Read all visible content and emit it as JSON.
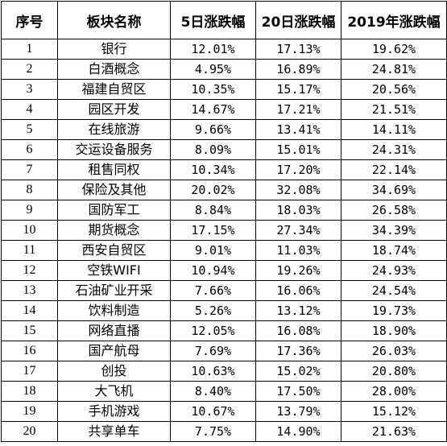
{
  "table": {
    "headers": [
      "序号",
      "板块名称",
      "5日涨跌幅",
      "20日涨跌幅",
      "2019年涨跌幅"
    ],
    "rows": [
      {
        "no": "1",
        "name": "银行",
        "d5": "12.01%",
        "d20": "17.13%",
        "y2019": "19.62%"
      },
      {
        "no": "2",
        "name": "白酒概念",
        "d5": "4.95%",
        "d20": "16.89%",
        "y2019": "24.81%"
      },
      {
        "no": "3",
        "name": "福建自贸区",
        "d5": "10.35%",
        "d20": "15.17%",
        "y2019": "20.56%"
      },
      {
        "no": "4",
        "name": "园区开发",
        "d5": "14.67%",
        "d20": "17.21%",
        "y2019": "21.51%"
      },
      {
        "no": "5",
        "name": "在线旅游",
        "d5": "9.66%",
        "d20": "13.41%",
        "y2019": "14.11%"
      },
      {
        "no": "6",
        "name": "交运设备服务",
        "d5": "8.09%",
        "d20": "15.01%",
        "y2019": "24.31%"
      },
      {
        "no": "7",
        "name": "租售同权",
        "d5": "10.34%",
        "d20": "17.20%",
        "y2019": "22.14%"
      },
      {
        "no": "8",
        "name": "保险及其他",
        "d5": "20.02%",
        "d20": "32.08%",
        "y2019": "34.69%"
      },
      {
        "no": "9",
        "name": "国防军工",
        "d5": "8.84%",
        "d20": "18.03%",
        "y2019": "26.58%"
      },
      {
        "no": "10",
        "name": "期货概念",
        "d5": "17.15%",
        "d20": "27.34%",
        "y2019": "34.39%"
      },
      {
        "no": "11",
        "name": "西安自贸区",
        "d5": "9.01%",
        "d20": "11.03%",
        "y2019": "18.74%"
      },
      {
        "no": "12",
        "name": "空铁WIFI",
        "d5": "10.94%",
        "d20": "19.26%",
        "y2019": "24.93%"
      },
      {
        "no": "13",
        "name": "石油矿业开采",
        "d5": "7.66%",
        "d20": "16.06%",
        "y2019": "24.54%"
      },
      {
        "no": "14",
        "name": "饮料制造",
        "d5": "5.26%",
        "d20": "13.12%",
        "y2019": "19.73%"
      },
      {
        "no": "15",
        "name": "网络直播",
        "d5": "12.05%",
        "d20": "16.08%",
        "y2019": "18.90%"
      },
      {
        "no": "16",
        "name": "国产航母",
        "d5": "7.69%",
        "d20": "17.36%",
        "y2019": "26.03%"
      },
      {
        "no": "17",
        "name": "创投",
        "d5": "10.63%",
        "d20": "15.02%",
        "y2019": "20.80%"
      },
      {
        "no": "18",
        "name": "大飞机",
        "d5": "8.40%",
        "d20": "17.50%",
        "y2019": "28.00%"
      },
      {
        "no": "19",
        "name": "手机游戏",
        "d5": "10.67%",
        "d20": "13.79%",
        "y2019": "15.12%"
      },
      {
        "no": "20",
        "name": "共享单车",
        "d5": "7.75%",
        "d20": "14.90%",
        "y2019": "21.63%"
      }
    ]
  }
}
